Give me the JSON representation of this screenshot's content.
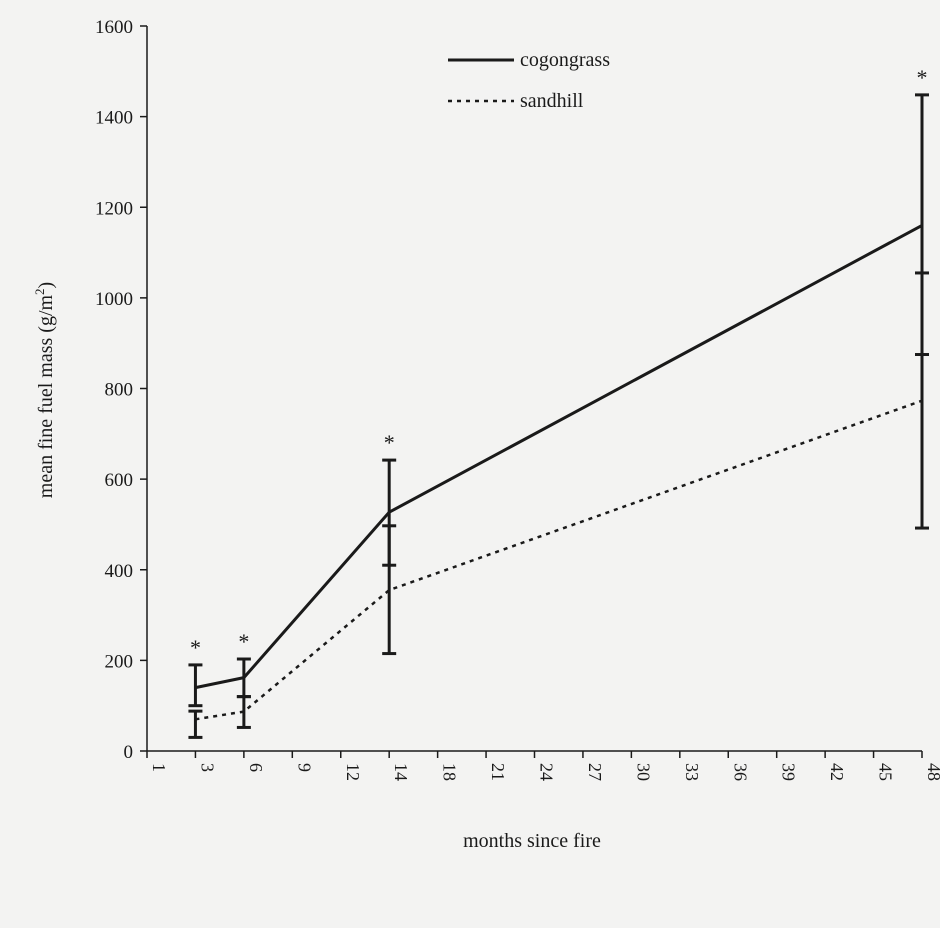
{
  "chart_data": {
    "type": "line",
    "xlabel": "months since fire",
    "ylabel": "mean fine fuel mass (g/m",
    "ylabel_sup": "2",
    "ylabel_close": ")",
    "ylim": [
      0,
      1600
    ],
    "yticks": [
      0,
      200,
      400,
      600,
      800,
      1000,
      1200,
      1400,
      1600
    ],
    "categories": [
      "1",
      "3",
      "6",
      "9",
      "12",
      "14",
      "18",
      "21",
      "24",
      "27",
      "30",
      "33",
      "36",
      "39",
      "42",
      "45",
      "48"
    ],
    "legend_position": "top-center",
    "grid": false,
    "significance_marker": "*",
    "series": [
      {
        "name": "cogongrass",
        "style": "solid",
        "color": "#1a1a1a",
        "points": [
          {
            "x": "3",
            "y": 140,
            "err_low": 100,
            "err_high": 190,
            "sig": true
          },
          {
            "x": "6",
            "y": 162,
            "err_low": 120,
            "err_high": 203,
            "sig": true
          },
          {
            "x": "14",
            "y": 527,
            "err_low": 410,
            "err_high": 642,
            "sig": true
          },
          {
            "x": "48",
            "y": 1160,
            "err_low": 875,
            "err_high": 1448,
            "sig": true
          }
        ]
      },
      {
        "name": "sandhill",
        "style": "dotted",
        "color": "#1a1a1a",
        "points": [
          {
            "x": "3",
            "y": 70,
            "err_low": 30,
            "err_high": 88
          },
          {
            "x": "6",
            "y": 87,
            "err_low": 52,
            "err_high": 120
          },
          {
            "x": "14",
            "y": 355,
            "err_low": 215,
            "err_high": 497
          },
          {
            "x": "48",
            "y": 773,
            "err_low": 492,
            "err_high": 1055
          }
        ]
      }
    ]
  }
}
